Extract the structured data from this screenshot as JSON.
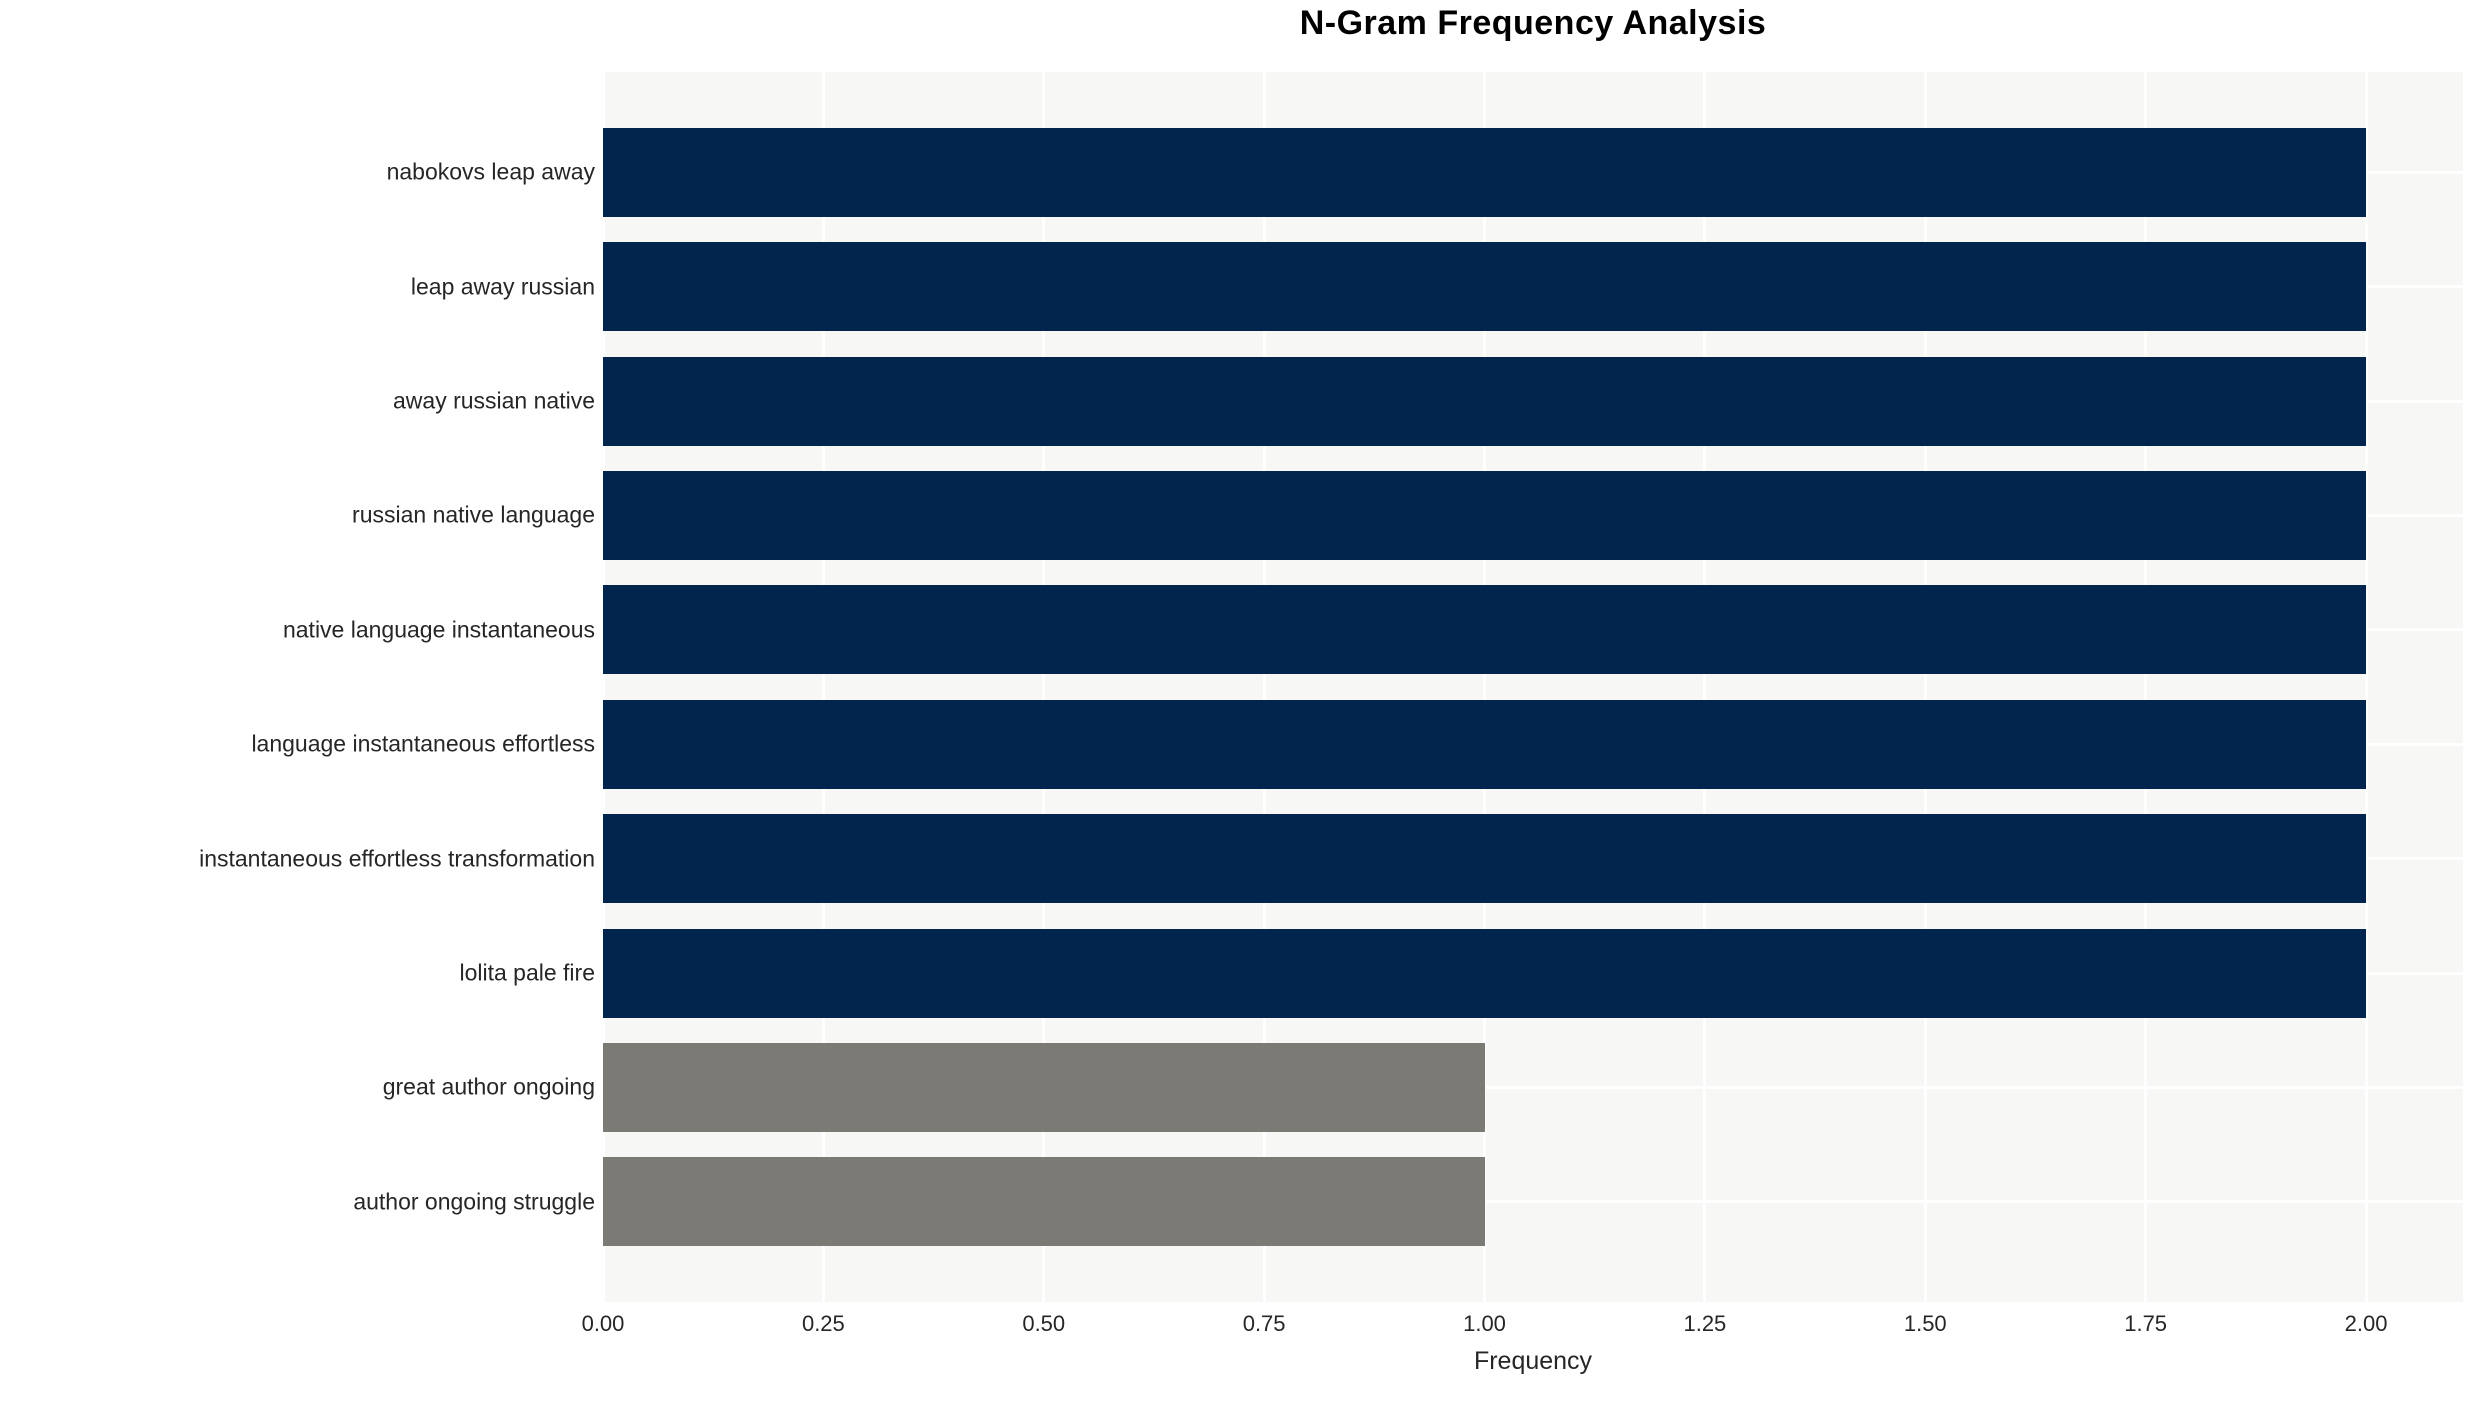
{
  "chart_data": {
    "type": "bar",
    "orientation": "horizontal",
    "title": "N-Gram Frequency Analysis",
    "xlabel": "Frequency",
    "ylabel": "",
    "categories": [
      "nabokovs leap away",
      "leap away russian",
      "away russian native",
      "russian native language",
      "native language instantaneous",
      "language instantaneous effortless",
      "instantaneous effortless transformation",
      "lolita pale fire",
      "great author ongoing",
      "author ongoing struggle"
    ],
    "values": [
      2.0,
      2.0,
      2.0,
      2.0,
      2.0,
      2.0,
      2.0,
      2.0,
      1.0,
      1.0
    ],
    "bar_colors": [
      "#02254d",
      "#02254d",
      "#02254d",
      "#02254d",
      "#02254d",
      "#02254d",
      "#02254d",
      "#02254d",
      "#7b7a74",
      "#7b7a74"
    ],
    "xlim": [
      0,
      2.11
    ],
    "x_ticks": [
      0.0,
      0.25,
      0.5,
      0.75,
      1.0,
      1.25,
      1.5,
      1.75,
      2.0
    ],
    "x_tick_labels": [
      "0.00",
      "0.25",
      "0.50",
      "0.75",
      "1.00",
      "1.25",
      "1.50",
      "1.75",
      "2.00"
    ],
    "grid": true,
    "grid_color": "#ffffff",
    "plot_bg": "#f7f7f6",
    "legend": "none"
  }
}
